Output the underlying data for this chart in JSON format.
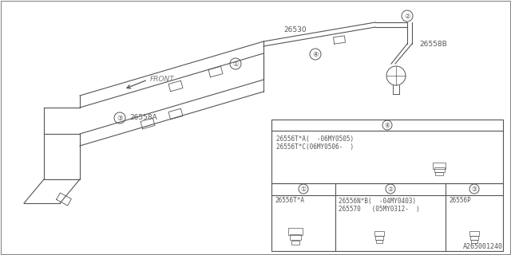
{
  "bg_color": "#ffffff",
  "line_color": "#555555",
  "title_bottom": "A265001240",
  "front_label": "FRONT",
  "part_26530": "26530",
  "part_26558B": "26558B",
  "part_26558A": "26558A",
  "table_upper_part1": "26556T*A(  -06MY0505)",
  "table_upper_part2": "26556T*C(06MY0506-  )",
  "table_lower_col1_part": "26556T*A",
  "table_lower_col2_part1": "26556N*B(  -04MY0403)",
  "table_lower_col2_part2": "265570   (05MY0312-  )",
  "table_lower_col3_part": "26556P"
}
